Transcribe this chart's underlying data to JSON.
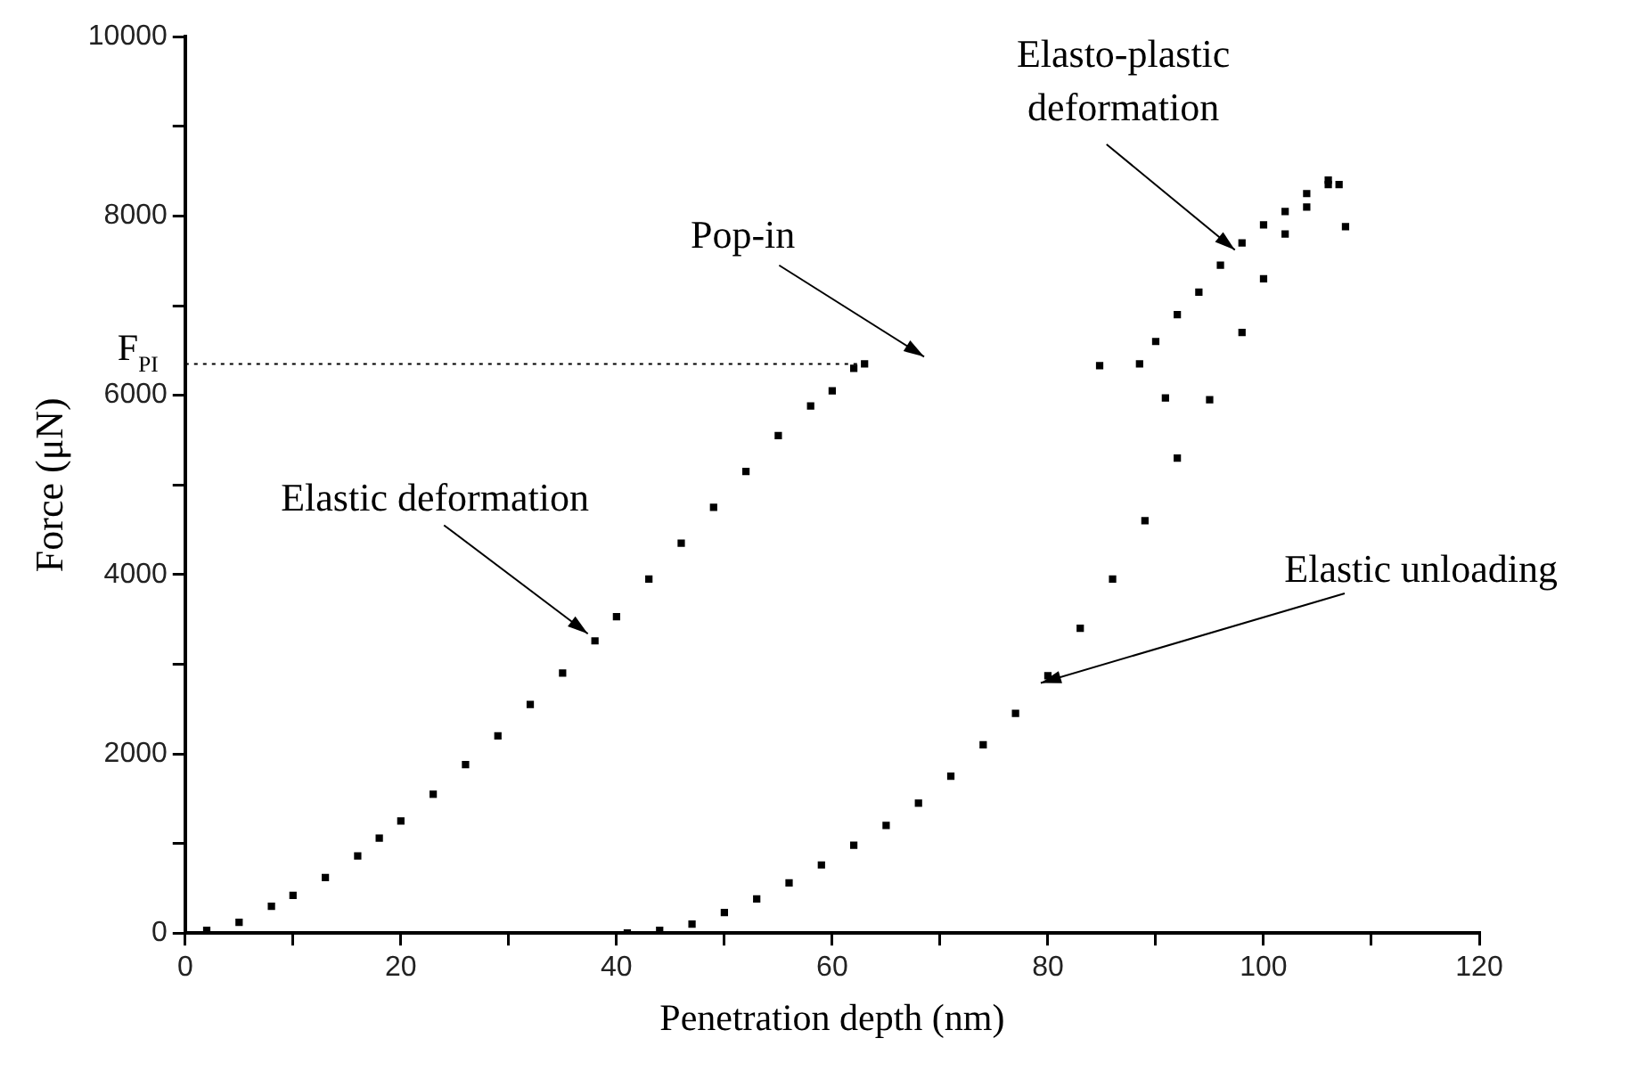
{
  "chart_data": {
    "type": "scatter",
    "xlabel": "Penetration depth (nm)",
    "ylabel": "Force (μN)",
    "xlim": [
      0,
      120
    ],
    "xticks": [
      0,
      {
        "value": 10,
        "label": null
      },
      20,
      {
        "value": 30,
        "label": null
      },
      40,
      {
        "value": 50,
        "label": null
      },
      60,
      {
        "value": 70,
        "label": null
      },
      80,
      {
        "value": 90,
        "label": null
      },
      100,
      {
        "value": 110,
        "label": null
      },
      120
    ],
    "ylim": [
      0,
      10000
    ],
    "yticks": [
      0,
      {
        "value": 1000,
        "label": null
      },
      2000,
      {
        "value": 3000,
        "label": null
      },
      4000,
      {
        "value": 5000,
        "label": null
      },
      6000,
      {
        "value": 7000,
        "label": null
      },
      8000,
      {
        "value": 9000,
        "label": null
      },
      10000
    ],
    "grid": false,
    "legend": false,
    "marker": "square",
    "series": [
      {
        "color": "#000000",
        "x": [
          2,
          5,
          8,
          10,
          13,
          16,
          18,
          20,
          23,
          26,
          29,
          32,
          35,
          38,
          40,
          43,
          46,
          49,
          52,
          55,
          58,
          60,
          62,
          63
        ],
        "values": [
          30,
          120,
          300,
          420,
          620,
          860,
          1060,
          1250,
          1550,
          1880,
          2200,
          2550,
          2900,
          3260,
          3530,
          3950,
          4350,
          4750,
          5150,
          5550,
          5880,
          6050,
          6300,
          6350
        ]
      },
      {
        "color": "#000000",
        "x": [
          41,
          44,
          47,
          50,
          53,
          56,
          59,
          62,
          65,
          68,
          71,
          74,
          77,
          80,
          83,
          86,
          89,
          92,
          95,
          98,
          100,
          102,
          104,
          106
        ],
        "values": [
          0,
          30,
          100,
          230,
          380,
          560,
          760,
          980,
          1200,
          1450,
          1750,
          2100,
          2450,
          2870,
          3400,
          3950,
          4600,
          5300,
          5950,
          6700,
          7300,
          7800,
          8100,
          8350
        ]
      },
      {
        "color": "#000000",
        "x": [
          88.5,
          90,
          92,
          94,
          96,
          98,
          100,
          102,
          104,
          106,
          107,
          84.8,
          90.9,
          107.6
        ],
        "values": [
          6350,
          6600,
          6900,
          7150,
          7450,
          7700,
          7900,
          8050,
          8250,
          8400,
          8350,
          6330,
          5970,
          7880
        ]
      }
    ],
    "ref_lines": [
      {
        "axis": "y",
        "value": 6350,
        "label": "F$_{PI}$",
        "line_style": "dotted"
      }
    ],
    "annotations": [
      {
        "text": "Elastic deformation",
        "x": 38,
        "y": 3260
      },
      "Pop-in",
      {
        "text": "Elasto-plastic deformation",
        "x": 98,
        "y": 7700
      },
      {
        "text": "Elastic unloading",
        "x": 80,
        "y": 2870
      }
    ]
  }
}
